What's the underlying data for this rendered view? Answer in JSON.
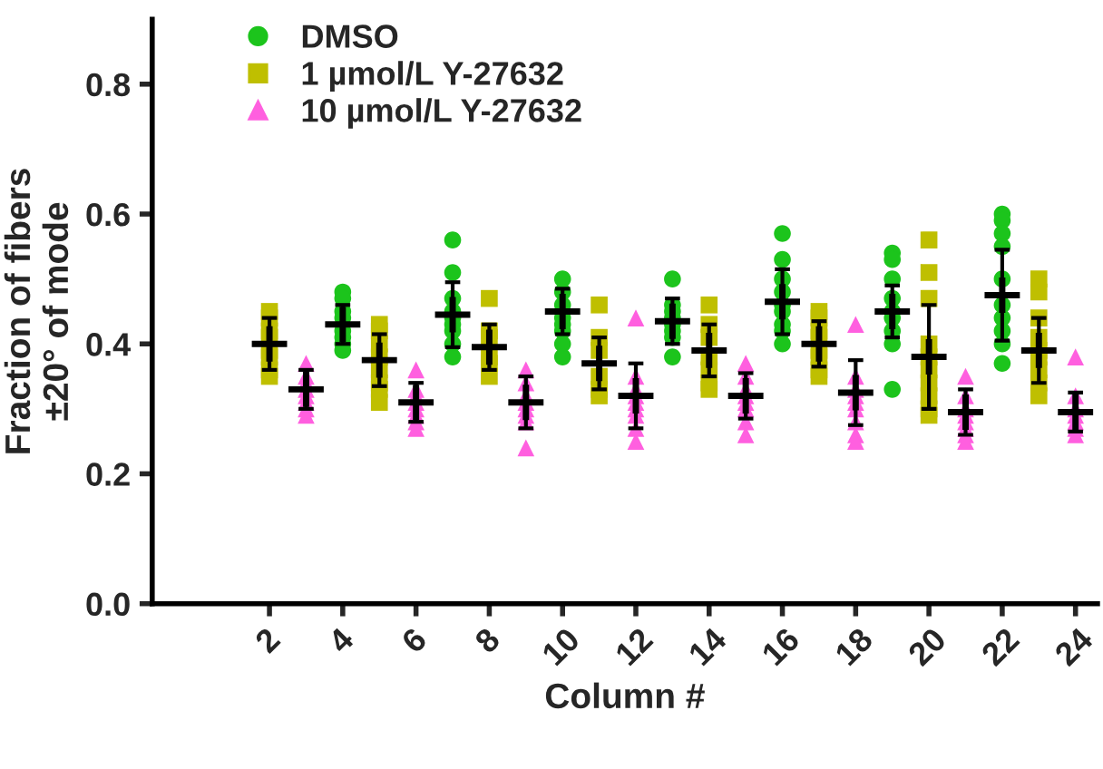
{
  "chart_data": {
    "type": "scatter",
    "xlabel": "Column #",
    "ylabel": "Fraction of fibers\n±20° of mode",
    "xlim": [
      -1.2,
      24.6
    ],
    "xticks": [
      2,
      4,
      6,
      8,
      10,
      12,
      14,
      16,
      18,
      20,
      22,
      24
    ],
    "ylim": [
      0,
      0.9
    ],
    "yticks": [
      {
        "value": 0,
        "label": "0.0"
      },
      {
        "value": 0.2,
        "label": "0.2"
      },
      {
        "value": 0.4,
        "label": "0.4"
      },
      {
        "value": 0.6,
        "label": "0.6"
      },
      {
        "value": 0.8,
        "label": "0.8"
      }
    ],
    "grid": false,
    "legend": "top left",
    "series": [
      {
        "name": "DMSO",
        "color": "#1cc41c",
        "marker": "circle",
        "x": [
          4,
          4,
          4,
          4,
          4,
          4,
          4,
          4,
          7,
          7,
          7,
          7,
          7,
          7,
          7,
          7,
          7,
          10,
          10,
          10,
          10,
          10,
          10,
          10,
          10,
          13,
          13,
          13,
          13,
          13,
          13,
          13,
          13,
          16,
          16,
          16,
          16,
          16,
          16,
          16,
          16,
          16,
          19,
          19,
          19,
          19,
          19,
          19,
          19,
          19,
          19,
          22,
          22,
          22,
          22,
          22,
          22,
          22,
          22,
          22,
          22
        ],
        "values": [
          0.48,
          0.47,
          0.45,
          0.44,
          0.42,
          0.41,
          0.4,
          0.39,
          0.56,
          0.51,
          0.47,
          0.45,
          0.44,
          0.43,
          0.42,
          0.4,
          0.38,
          0.5,
          0.48,
          0.46,
          0.44,
          0.43,
          0.42,
          0.4,
          0.38,
          0.5,
          0.46,
          0.45,
          0.44,
          0.43,
          0.42,
          0.41,
          0.38,
          0.57,
          0.53,
          0.5,
          0.48,
          0.46,
          0.45,
          0.43,
          0.42,
          0.4,
          0.54,
          0.53,
          0.5,
          0.47,
          0.45,
          0.44,
          0.42,
          0.4,
          0.33,
          0.6,
          0.59,
          0.57,
          0.55,
          0.5,
          0.46,
          0.44,
          0.42,
          0.4,
          0.37
        ]
      },
      {
        "name": "1 µmol/L Y-27632",
        "color": "#bfbf00",
        "marker": "square",
        "x": [
          2,
          2,
          2,
          2,
          2,
          2,
          2,
          2,
          5,
          5,
          5,
          5,
          5,
          5,
          5,
          5,
          8,
          8,
          8,
          8,
          8,
          8,
          11,
          11,
          11,
          11,
          11,
          11,
          14,
          14,
          14,
          14,
          14,
          14,
          14,
          17,
          17,
          17,
          17,
          17,
          17,
          17,
          17,
          20,
          20,
          20,
          20,
          20,
          20,
          20,
          20,
          20,
          20,
          23,
          23,
          23,
          23,
          23,
          23,
          23,
          23,
          23
        ],
        "values": [
          0.45,
          0.44,
          0.42,
          0.41,
          0.39,
          0.38,
          0.36,
          0.35,
          0.43,
          0.42,
          0.4,
          0.38,
          0.36,
          0.34,
          0.33,
          0.31,
          0.47,
          0.42,
          0.41,
          0.38,
          0.37,
          0.35,
          0.46,
          0.41,
          0.39,
          0.35,
          0.33,
          0.32,
          0.46,
          0.43,
          0.41,
          0.38,
          0.36,
          0.34,
          0.33,
          0.45,
          0.44,
          0.42,
          0.41,
          0.39,
          0.38,
          0.36,
          0.35,
          0.56,
          0.51,
          0.47,
          0.4,
          0.38,
          0.36,
          0.34,
          0.32,
          0.3,
          0.29,
          0.5,
          0.48,
          0.44,
          0.41,
          0.39,
          0.38,
          0.36,
          0.34,
          0.32
        ]
      },
      {
        "name": "10 µmol/L Y-27632",
        "color": "#ff5fdf",
        "marker": "triangle",
        "x": [
          3,
          3,
          3,
          3,
          3,
          3,
          3,
          3,
          6,
          6,
          6,
          6,
          6,
          6,
          6,
          6,
          9,
          9,
          9,
          9,
          9,
          9,
          9,
          9,
          12,
          12,
          12,
          12,
          12,
          12,
          12,
          12,
          12,
          15,
          15,
          15,
          15,
          15,
          15,
          15,
          15,
          18,
          18,
          18,
          18,
          18,
          18,
          18,
          18,
          18,
          21,
          21,
          21,
          21,
          21,
          21,
          21,
          21,
          24,
          24,
          24,
          24,
          24,
          24,
          24
        ],
        "values": [
          0.37,
          0.35,
          0.34,
          0.33,
          0.32,
          0.31,
          0.3,
          0.29,
          0.36,
          0.33,
          0.32,
          0.31,
          0.3,
          0.29,
          0.28,
          0.27,
          0.36,
          0.34,
          0.32,
          0.31,
          0.3,
          0.29,
          0.28,
          0.24,
          0.44,
          0.35,
          0.33,
          0.32,
          0.31,
          0.3,
          0.29,
          0.27,
          0.25,
          0.37,
          0.35,
          0.33,
          0.32,
          0.31,
          0.3,
          0.28,
          0.26,
          0.43,
          0.35,
          0.33,
          0.32,
          0.31,
          0.3,
          0.28,
          0.26,
          0.25,
          0.35,
          0.32,
          0.3,
          0.29,
          0.28,
          0.27,
          0.26,
          0.25,
          0.38,
          0.32,
          0.3,
          0.29,
          0.28,
          0.27,
          0.26
        ]
      },
      {
        "color": "#000000",
        "marker": "cross",
        "x": [
          2,
          3,
          4,
          5,
          6,
          7,
          8,
          9,
          10,
          11,
          12,
          13,
          14,
          15,
          16,
          17,
          18,
          19,
          20,
          21,
          22,
          23,
          24
        ],
        "values": [
          0.4,
          0.33,
          0.43,
          0.375,
          0.31,
          0.445,
          0.395,
          0.31,
          0.45,
          0.37,
          0.32,
          0.435,
          0.39,
          0.32,
          0.465,
          0.4,
          0.325,
          0.45,
          0.38,
          0.295,
          0.475,
          0.39,
          0.295
        ],
        "errors": [
          0.04,
          0.03,
          0.03,
          0.04,
          0.03,
          0.05,
          0.035,
          0.04,
          0.035,
          0.04,
          0.05,
          0.035,
          0.04,
          0.035,
          0.05,
          0.035,
          0.05,
          0.04,
          0.08,
          0.035,
          0.07,
          0.05,
          0.03
        ]
      }
    ]
  }
}
